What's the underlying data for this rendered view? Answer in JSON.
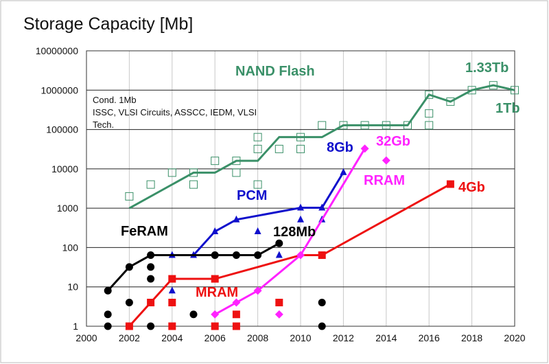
{
  "chart_data": {
    "type": "line",
    "title": "Storage Capacity [Mb]",
    "xlabel": "",
    "ylabel": "",
    "xlim": [
      2000,
      2020
    ],
    "ylim": [
      1,
      10000000
    ],
    "yscale": "log",
    "grid": true,
    "x_ticks": [
      "2000",
      "2002",
      "2004",
      "2006",
      "2008",
      "2010",
      "2012",
      "2014",
      "2016",
      "2018",
      "2020"
    ],
    "y_ticks": [
      "1",
      "10",
      "100",
      "1000",
      "10000",
      "100000",
      "1000000",
      "10000000"
    ],
    "note": [
      "Cond. 1Mb",
      "ISSC, VLSI Circuits, ASSCC, IEDM, VLSI",
      "Tech."
    ],
    "series": [
      {
        "name": "NAND Flash",
        "color": "#3a9068",
        "marker": "open-square",
        "trend": [
          [
            2002,
            1000
          ],
          [
            2005,
            8000
          ],
          [
            2006,
            8000
          ],
          [
            2007,
            16000
          ],
          [
            2008,
            16000
          ],
          [
            2009,
            64000
          ],
          [
            2011,
            64000
          ],
          [
            2012,
            128000
          ],
          [
            2015,
            128000
          ],
          [
            2016,
            768000
          ],
          [
            2017,
            512000
          ],
          [
            2018,
            1000000
          ],
          [
            2019,
            1330000
          ],
          [
            2020,
            1000000
          ]
        ],
        "points": [
          [
            2002,
            2000
          ],
          [
            2003,
            4000
          ],
          [
            2004,
            8000
          ],
          [
            2005,
            8000
          ],
          [
            2005,
            4000
          ],
          [
            2006,
            16000
          ],
          [
            2007,
            16000
          ],
          [
            2007,
            8000
          ],
          [
            2008,
            64000
          ],
          [
            2008,
            32000
          ],
          [
            2008,
            4000
          ],
          [
            2009,
            32000
          ],
          [
            2010,
            64000
          ],
          [
            2010,
            32000
          ],
          [
            2011,
            128000
          ],
          [
            2012,
            128000
          ],
          [
            2013,
            128000
          ],
          [
            2014,
            128000
          ],
          [
            2015,
            128000
          ],
          [
            2016,
            768000
          ],
          [
            2016,
            256000
          ],
          [
            2016,
            128000
          ],
          [
            2017,
            512000
          ],
          [
            2018,
            1000000
          ],
          [
            2019,
            1330000
          ],
          [
            2020,
            1000000
          ]
        ]
      },
      {
        "name": "PCM",
        "color": "#1010cc",
        "marker": "triangle",
        "trend": [
          [
            2005,
            64
          ],
          [
            2006,
            256
          ],
          [
            2007,
            512
          ],
          [
            2010,
            1024
          ],
          [
            2011,
            1024
          ],
          [
            2012,
            8192
          ]
        ],
        "points": [
          [
            2004,
            64
          ],
          [
            2004,
            8
          ],
          [
            2005,
            64
          ],
          [
            2006,
            256
          ],
          [
            2007,
            512
          ],
          [
            2008,
            256
          ],
          [
            2009,
            64
          ],
          [
            2010,
            1024
          ],
          [
            2010,
            512
          ],
          [
            2011,
            1024
          ],
          [
            2011,
            512
          ],
          [
            2012,
            8192
          ]
        ]
      },
      {
        "name": "FeRAM",
        "color": "#000000",
        "marker": "circle",
        "trend": [
          [
            2001,
            8
          ],
          [
            2002,
            32
          ],
          [
            2003,
            64
          ],
          [
            2006,
            64
          ],
          [
            2007,
            64
          ],
          [
            2008,
            64
          ],
          [
            2009,
            128
          ]
        ],
        "points": [
          [
            2001,
            8
          ],
          [
            2001,
            2
          ],
          [
            2001,
            1
          ],
          [
            2002,
            32
          ],
          [
            2002,
            4
          ],
          [
            2003,
            64
          ],
          [
            2003,
            32
          ],
          [
            2003,
            16
          ],
          [
            2003,
            1
          ],
          [
            2005,
            2
          ],
          [
            2006,
            64
          ],
          [
            2007,
            64
          ],
          [
            2008,
            64
          ],
          [
            2009,
            128
          ],
          [
            2011,
            4
          ],
          [
            2011,
            1
          ]
        ]
      },
      {
        "name": "MRAM",
        "color": "#ee1111",
        "marker": "square",
        "trend": [
          [
            2002,
            1
          ],
          [
            2003,
            4
          ],
          [
            2004,
            16
          ],
          [
            2006,
            16
          ],
          [
            2010,
            64
          ],
          [
            2011,
            64
          ],
          [
            2017,
            4096
          ]
        ],
        "points": [
          [
            2002,
            1
          ],
          [
            2003,
            4
          ],
          [
            2004,
            16
          ],
          [
            2004,
            4
          ],
          [
            2004,
            1
          ],
          [
            2006,
            16
          ],
          [
            2006,
            1
          ],
          [
            2007,
            2
          ],
          [
            2007,
            1
          ],
          [
            2009,
            4
          ],
          [
            2011,
            64
          ],
          [
            2017,
            4096
          ]
        ]
      },
      {
        "name": "RRAM",
        "color": "#ff22ff",
        "marker": "diamond",
        "trend": [
          [
            2006,
            2
          ],
          [
            2007,
            4
          ],
          [
            2008,
            8
          ],
          [
            2010,
            64
          ],
          [
            2013,
            32768
          ]
        ],
        "points": [
          [
            2006,
            2
          ],
          [
            2007,
            4
          ],
          [
            2008,
            8
          ],
          [
            2009,
            2
          ],
          [
            2010,
            64
          ],
          [
            2013,
            32768
          ],
          [
            2014,
            16384
          ]
        ]
      }
    ],
    "annotations": [
      {
        "text": "NAND Flash",
        "color": "#3a9068"
      },
      {
        "text": "1.33Tb",
        "color": "#3a9068"
      },
      {
        "text": "1Tb",
        "color": "#3a9068"
      },
      {
        "text": "8Gb",
        "color": "#1010cc"
      },
      {
        "text": "32Gb",
        "color": "#ff22ff"
      },
      {
        "text": "RRAM",
        "color": "#ff22ff"
      },
      {
        "text": "4Gb",
        "color": "#ee1111"
      },
      {
        "text": "PCM",
        "color": "#1010cc"
      },
      {
        "text": "FeRAM",
        "color": "#000000"
      },
      {
        "text": "128Mb",
        "color": "#000000"
      },
      {
        "text": "MRAM",
        "color": "#ee1111"
      }
    ]
  }
}
